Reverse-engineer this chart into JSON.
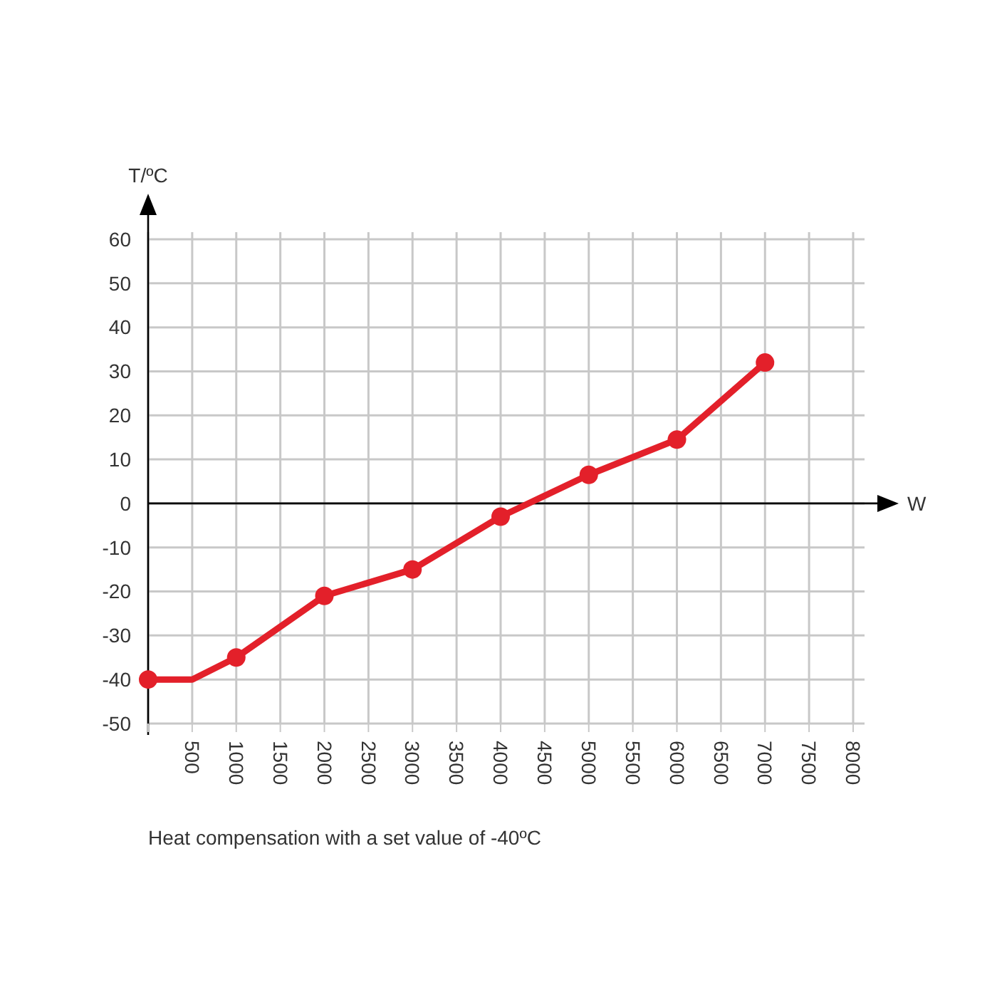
{
  "chart_data": {
    "type": "line",
    "xlabel": "W",
    "ylabel": "T/ºC",
    "annotations": [
      "Heat compensation with a set value of -40ºC"
    ],
    "xlim": [
      0,
      8000
    ],
    "xticks": [
      {
        "value": 0,
        "label": null
      },
      500,
      1000,
      1500,
      2000,
      2500,
      3000,
      3500,
      4000,
      4500,
      5000,
      5500,
      6000,
      6500,
      7000,
      7500,
      8000
    ],
    "ylim": [
      -50,
      60
    ],
    "yticks": [
      -50,
      -40,
      -30,
      -20,
      -10,
      0,
      10,
      20,
      30,
      40,
      50,
      60
    ],
    "grid": true,
    "series": [
      {
        "color": "#e3202a",
        "marker": "none",
        "x": [
          0,
          500,
          1000,
          2000,
          3000,
          4000,
          5000,
          6000,
          7000
        ],
        "values": [
          -40,
          -40,
          -35,
          -21,
          -15,
          -3,
          6.5,
          14.5,
          32
        ]
      },
      {
        "type": "scatter",
        "color": "#e3202a",
        "marker": "circle",
        "x": [
          0,
          1000,
          2000,
          3000,
          4000,
          5000,
          6000,
          7000
        ],
        "values": [
          -40,
          -35,
          -21,
          -15,
          -3,
          6.5,
          14.5,
          32
        ]
      }
    ]
  }
}
